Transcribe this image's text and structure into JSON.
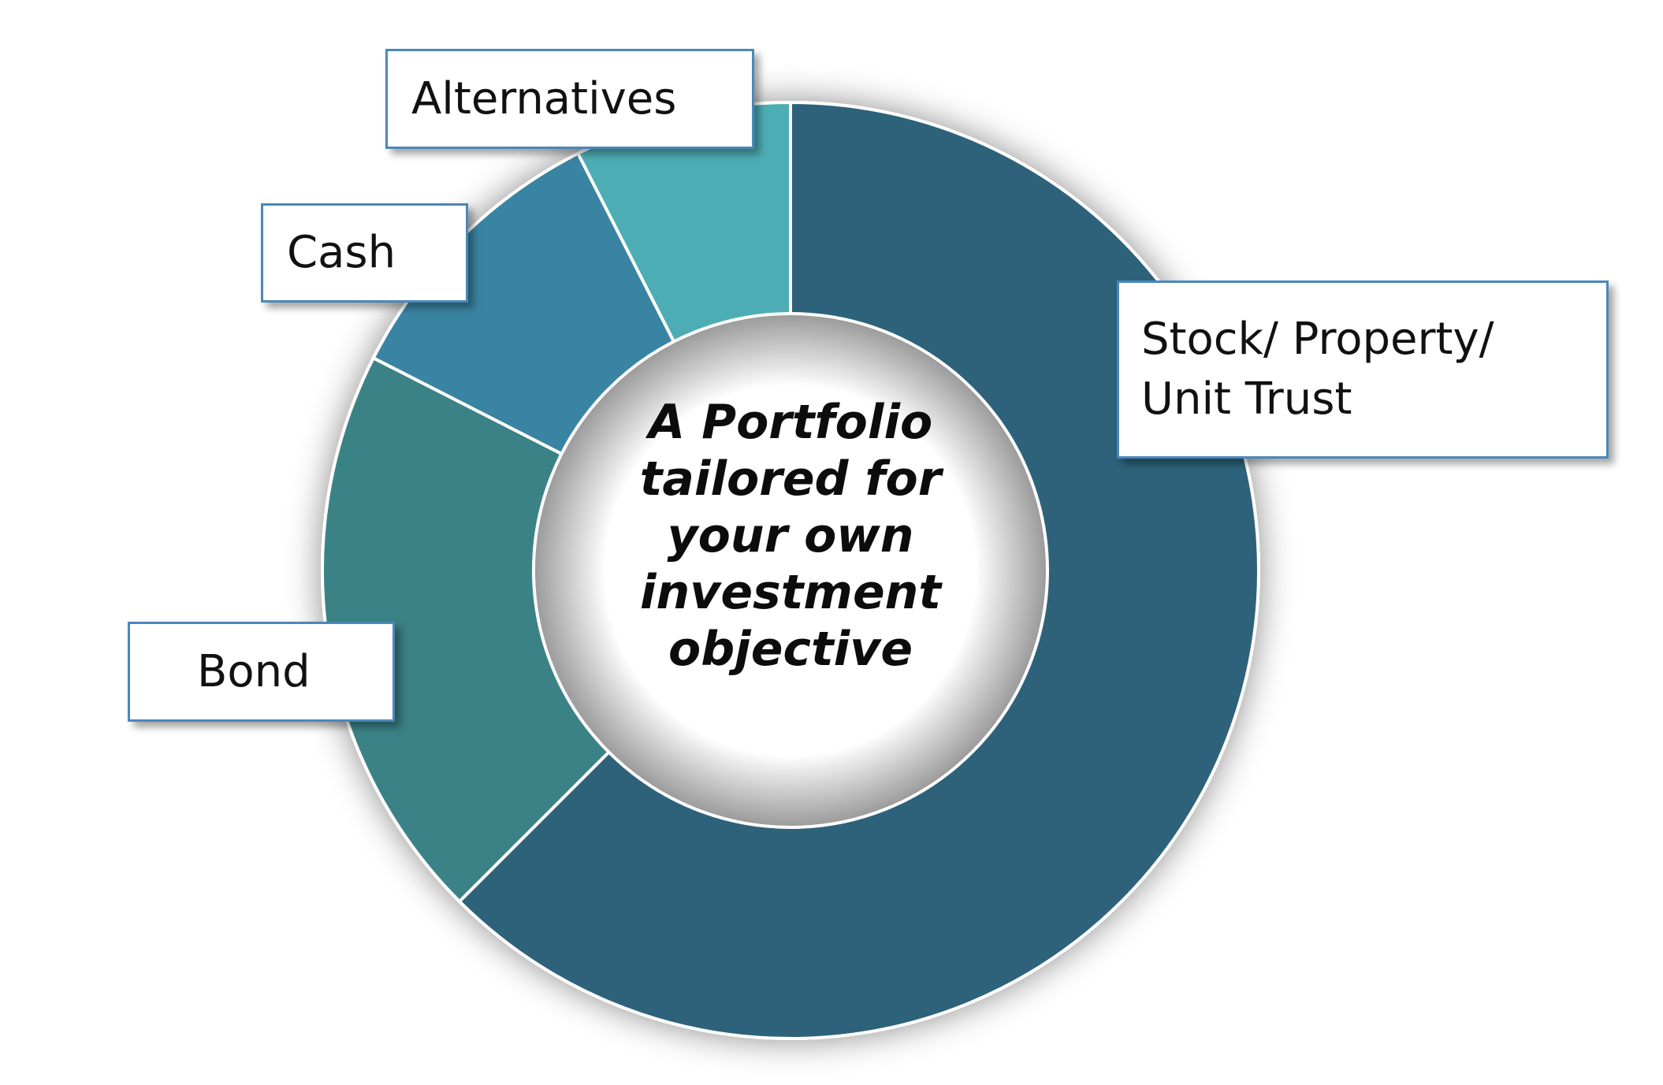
{
  "chart_data": {
    "type": "pie",
    "donut": true,
    "categories": [
      "Stock/ Property/ Unit Trust",
      "Bond",
      "Cash",
      "Alternatives"
    ],
    "values": [
      62.5,
      20,
      10,
      7.5
    ],
    "labels": [
      "Stock/ Property/",
      "Unit Trust",
      "Bond",
      "Cash",
      "Alternatives"
    ],
    "center_text": [
      "A Portfolio",
      "tailored for",
      "your own",
      "investment",
      "objective"
    ],
    "colors": [
      "#2d627a",
      "#3b8286",
      "#3a84a3",
      "#4dadb5"
    ]
  }
}
